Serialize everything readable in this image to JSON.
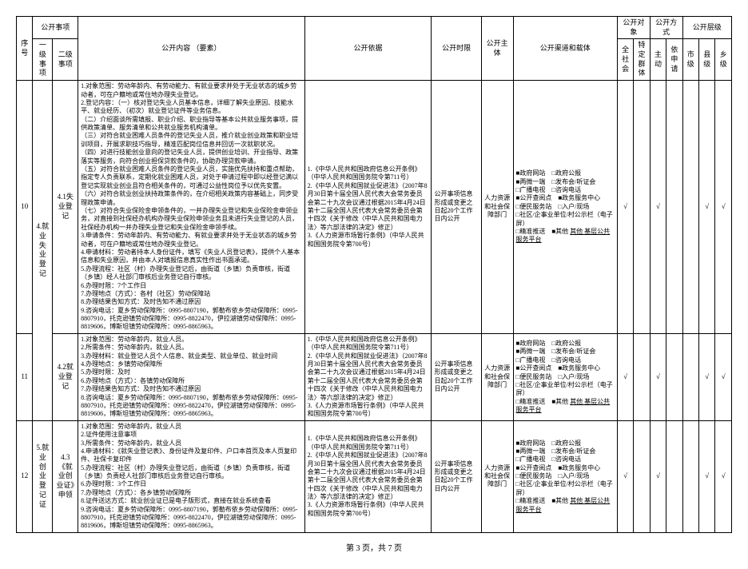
{
  "header": {
    "seq": "序号",
    "matter": "公开事项",
    "level1": "一级事项",
    "level2": "二级事项",
    "content": "公开内容\n（要素）",
    "basis": "公开依据",
    "time": "公开时限",
    "subject": "公开主体",
    "channel": "公开渠道和载体",
    "target": "公开对象",
    "method": "公开方式",
    "level": "公开层级",
    "all_society": "全社会",
    "specific": "特定群体",
    "active": "主动",
    "by_app": "依申请",
    "city": "市级",
    "county": "县级",
    "township": "乡级"
  },
  "rows": [
    {
      "seq": "10",
      "l1": "4.就业失业登记",
      "l2": "4.1失业登记",
      "content": "1.对象范围：劳动年龄内、有劳动能力、有就业要求并处于无业状态的城乡劳动者，可在户籍地或常住地办理失业登记。\n2.登记内容：（一）核对登记失业人员基本信息，详细了解失业原因、技能水平、就业经历、（初次）就业登记证件等业务信息。\n（二）介绍面谈所需填报、职业介绍、职业指导等基本公共就业服务事项，提供政策清单、服务清单和公共就业服务机构清单。\n（三）对符合就业困难人员条件的登记失业人员，推介就业创业政策和职业培训项目，开展求职技巧指导，精准匹配岗位信息并回访一次就职状况。\n（四）对进行技能创业意向的登记失业人员，提供创业培训、开业指导、政策落实等服务，向符合创业担保贷款条件的，协助办理贷款申请。\n（五）对符合就业困难人员条件的登记失业人员，实施优先扶持和重点帮助，指定专人负责联系，定期化就业困难人员，对处于申请过程中即以经登记满以登记实现就业创业且符合相关条件的，可通过公益性岗位予以优先安置。\n（六）对符合就业创业扶持政策条件的，在介绍相关政策内容基础上，同步受理政策申请。\n（七）对符合失业保险金申领条件的，一并办理失业登记和失业保险金申领业务，对直接到社保经办机构办理失业保险申领业务且未进行失业登记的人员，社保经办机构一并办理失业登记和失业保险金申领手续。\n3.申请条件：劳动年龄内、有劳动能力、有就业要求并处于无业状态的城乡劳动者，可在户籍地或常住地办理失业登记。\n4.申请材料：劳动者持本人身份证件，填写《失业人员登记表》，提供个人基本信息和失业原因，并由本人对填报信息真实性作出书面承诺。\n5.办理流程：社区（村）办理失业登记后，由街道（乡镇）负责审核，街道（乡镇）经人社部门审核后业务登记自行审核。\n6.办理时限：7个工作日\n7.办理地点（方式）：各村（社区）劳动保障站\n8.办理结果告知方式：及时告知不通过原因\n9.咨询电话：夏乡劳动保障所：0995-8807190，郭勒布依乡劳动保障所：0995-8807910，托克逊镇劳动保障所：0995-8822470，伊拉湖镇劳动保障所：0995-8819606，博斯坦镇劳动保障所：0995-8865963。",
      "basis": "1.《中华人民共和国政府信息公开条例》（中华人民共和国国务院令第711号）\n2.《中华人民共和国就业促进法》（2007年8月30日第十届全国人民代表大会常务委员会第二十九次会议通过根据2015年4月24日第十二届全国人民代表大会常务委员会第十四次《关于修改〈中华人民共和国电力法〉等六部法律的决定》修正）\n3.《人力资源市场暂行条例》（中华人民共和国国务院令第700号）",
      "time": "公开事项信息形成或变更之日起20个工作日内公开",
      "subject": "人力资源和社会保障部门",
      "channel_lines": [
        {
          "f": "■",
          "t": "政府网站",
          "f2": "□",
          "t2": "政府公报"
        },
        {
          "f": "■",
          "t": "两微一端",
          "f2": "□",
          "t2": "发布会/听证会"
        },
        {
          "f": "□",
          "t": "广播电视",
          "f2": "□",
          "t2": "咨询电话"
        },
        {
          "f": "■",
          "t": "公开查阅点",
          "f2": "■",
          "t2": "政务服务中心"
        },
        {
          "f": "□",
          "t": "便民服务站",
          "f2": "□",
          "t2": "入户/现场"
        },
        {
          "f": "□",
          "t": "社区/企事业单位/村公示栏（电子屏）"
        },
        {
          "f": "",
          "t": ""
        },
        {
          "f": "□",
          "t": "精准推送",
          "f2": "■",
          "t2": "其他 基层公共服务平台"
        }
      ],
      "chk": [
        "√",
        "",
        "√",
        "",
        "",
        "√",
        "√"
      ]
    },
    {
      "seq": "11",
      "l1": "",
      "l2": "4.2就业登记",
      "content": "1.对象范围：劳动年龄内，就业人员。\n2.所需条件：劳动年龄内，就业人员。\n3.办理材料：就业登记人员个人信息、就业类型、就业单位、就业时间\n4.办理地点：乡镇劳动保障所\n5.办理时限：及时\n6.办理地点（方式）：各镇劳动保障所\n7.办理结果告知方式：及时告知不通过原因\n8.咨询电话：夏乡劳动保障所：0995-8807190，郭勒布依乡劳动保障所：0995-8807910，托克逊镇劳动保障所：0995-8822470，伊拉湖镇劳动保障所：0995-8819606，博斯坦镇劳动保障所：0995-8865963。",
      "basis": "1.《中华人民共和国政府信息公开条例》（中华人民共和国国务院令第711号）\n2.《中华人民共和国就业促进法》（2007年8月30日第十届全国人民代表大会常务委员会第二十九次会议通过根据2015年4月24日第十二届全国人民代表大会常务委员会第十四次《关于修改〈中华人民共和国电力法〉等六部法律的决定》修正）\n3.《人力资源市场暂行条例》（中华人民共和国国务院令第700号）",
      "time": "公开事项信息形成或变更之日起20个工作日内公开",
      "subject": "人力资源和社会保障部门",
      "channel_lines": [
        {
          "f": "■",
          "t": "政府网站",
          "f2": "□",
          "t2": "政府公报"
        },
        {
          "f": "■",
          "t": "两微一端",
          "f2": "□",
          "t2": "发布会/听证会"
        },
        {
          "f": "□",
          "t": "广播电视",
          "f2": "□",
          "t2": "咨询电话"
        },
        {
          "f": "■",
          "t": "公开查阅点",
          "f2": "■",
          "t2": "政务服务中心"
        },
        {
          "f": "□",
          "t": "便民服务站",
          "f2": "□",
          "t2": "入户/现场"
        },
        {
          "f": "□",
          "t": "社区/企事业单位/村公示栏（电子屏）"
        },
        {
          "f": "",
          "t": ""
        },
        {
          "f": "□",
          "t": "精准推送",
          "f2": "■",
          "t2": "其他 基层公共服务平台"
        }
      ],
      "chk": [
        "√",
        "",
        "√",
        "",
        "",
        "√",
        "√"
      ]
    },
    {
      "seq": "12",
      "l1": "5.就业创业登记证",
      "l2": "4.3《就业创业证》申领",
      "content": "1.对象范围：劳动年龄内，就业人员\n2.证件使用注意事项\n3.所需条件：劳动年龄内，就业人员\n4.申请材料：《就失业登记表》、身份证件及复印件、户口本首页及本人页复印件、社保卡复印件\n5.办理流程：社区（村）办理失业登记后，由街道（乡镇）负责审核，街道（乡镇）负责经人社部门审核后业务登记自行审核。\n6.办理时限：3个工作日\n7.办理地点（方式）：各乡镇劳动保障所\n8.证件送达方式：就业创业证已是电子版形式，直接在就业系统查看\n9.咨询电话：夏乡劳动保障所：0995-8807190，郭勒布依乡劳动保障所：0995-8807910，托克逊镇劳动保障所：0995-8822470，伊拉湖镇劳动保障所：0995-8819606，博斯坦镇劳动保障所：0995-8865963。",
      "basis": "1.《中华人民共和国政府信息公开条例》（中华人民共和国国务院令第711号）\n2.《中华人民共和国就业促进法》（2007年8月30日第十届全国人民代表大会常务委员会第二十九次会议通过根据2015年4月24日第十二届全国人民代表大会常务委员会第十四次《关于修改〈中华人民共和国电力法〉等六部法律的决定》修正）\n3.《人力资源市场暂行条例》（中华人民共和国国务院令第700号）",
      "time": "公开事项信息形成或变更之日起20个工作日内公开",
      "subject": "人力资源和社会保障部门",
      "channel_lines": [
        {
          "f": "■",
          "t": "政府网站",
          "f2": "□",
          "t2": "政府公报"
        },
        {
          "f": "■",
          "t": "两微一端",
          "f2": "□",
          "t2": "发布会/听证会"
        },
        {
          "f": "□",
          "t": "广播电视",
          "f2": "□",
          "t2": "咨询电话"
        },
        {
          "f": "■",
          "t": "公开查阅点",
          "f2": "■",
          "t2": "政务服务中心"
        },
        {
          "f": "□",
          "t": "便民服务站",
          "f2": "□",
          "t2": "入户/现场"
        },
        {
          "f": "□",
          "t": "社区/企事业单位/村公示栏（电子屏）"
        },
        {
          "f": "",
          "t": ""
        },
        {
          "f": "□",
          "t": "精准推送",
          "f2": "■",
          "t2": "其他 基层公共服务平台"
        }
      ],
      "chk": [
        "√",
        "",
        "√",
        "",
        "",
        "√",
        "√"
      ]
    }
  ],
  "footer": "第 3 页，共 7 页"
}
